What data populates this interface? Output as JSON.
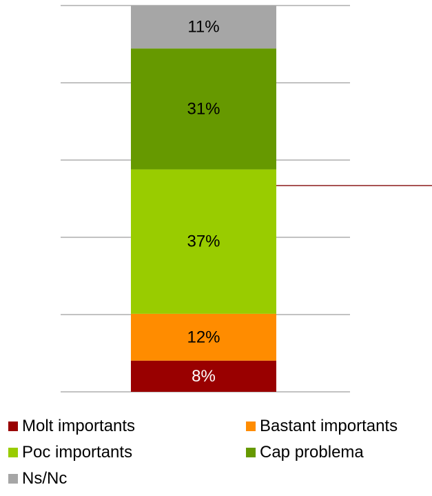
{
  "chart_data": {
    "type": "bar",
    "stacked": true,
    "orientation": "vertical",
    "categories": [
      ""
    ],
    "series": [
      {
        "name": "Molt importants",
        "values": [
          8
        ],
        "label": "8%",
        "color": "#990000",
        "label_color": "#ffffff"
      },
      {
        "name": "Bastant importants",
        "values": [
          12
        ],
        "label": "12%",
        "color": "#ff8c00",
        "label_color": "#000000"
      },
      {
        "name": "Poc importants",
        "values": [
          37
        ],
        "label": "37%",
        "color": "#99cc00",
        "label_color": "#000000"
      },
      {
        "name": "Cap problema",
        "values": [
          31
        ],
        "label": "31%",
        "color": "#669900",
        "label_color": "#000000"
      },
      {
        "name": "Ns/Nc",
        "values": [
          11
        ],
        "label": "11%",
        "color": "#a6a6a6",
        "label_color": "#000000"
      }
    ],
    "ylim": [
      0,
      100
    ],
    "grid": true,
    "legend_position": "bottom",
    "annotation_line_color": "#8b1a1a"
  }
}
